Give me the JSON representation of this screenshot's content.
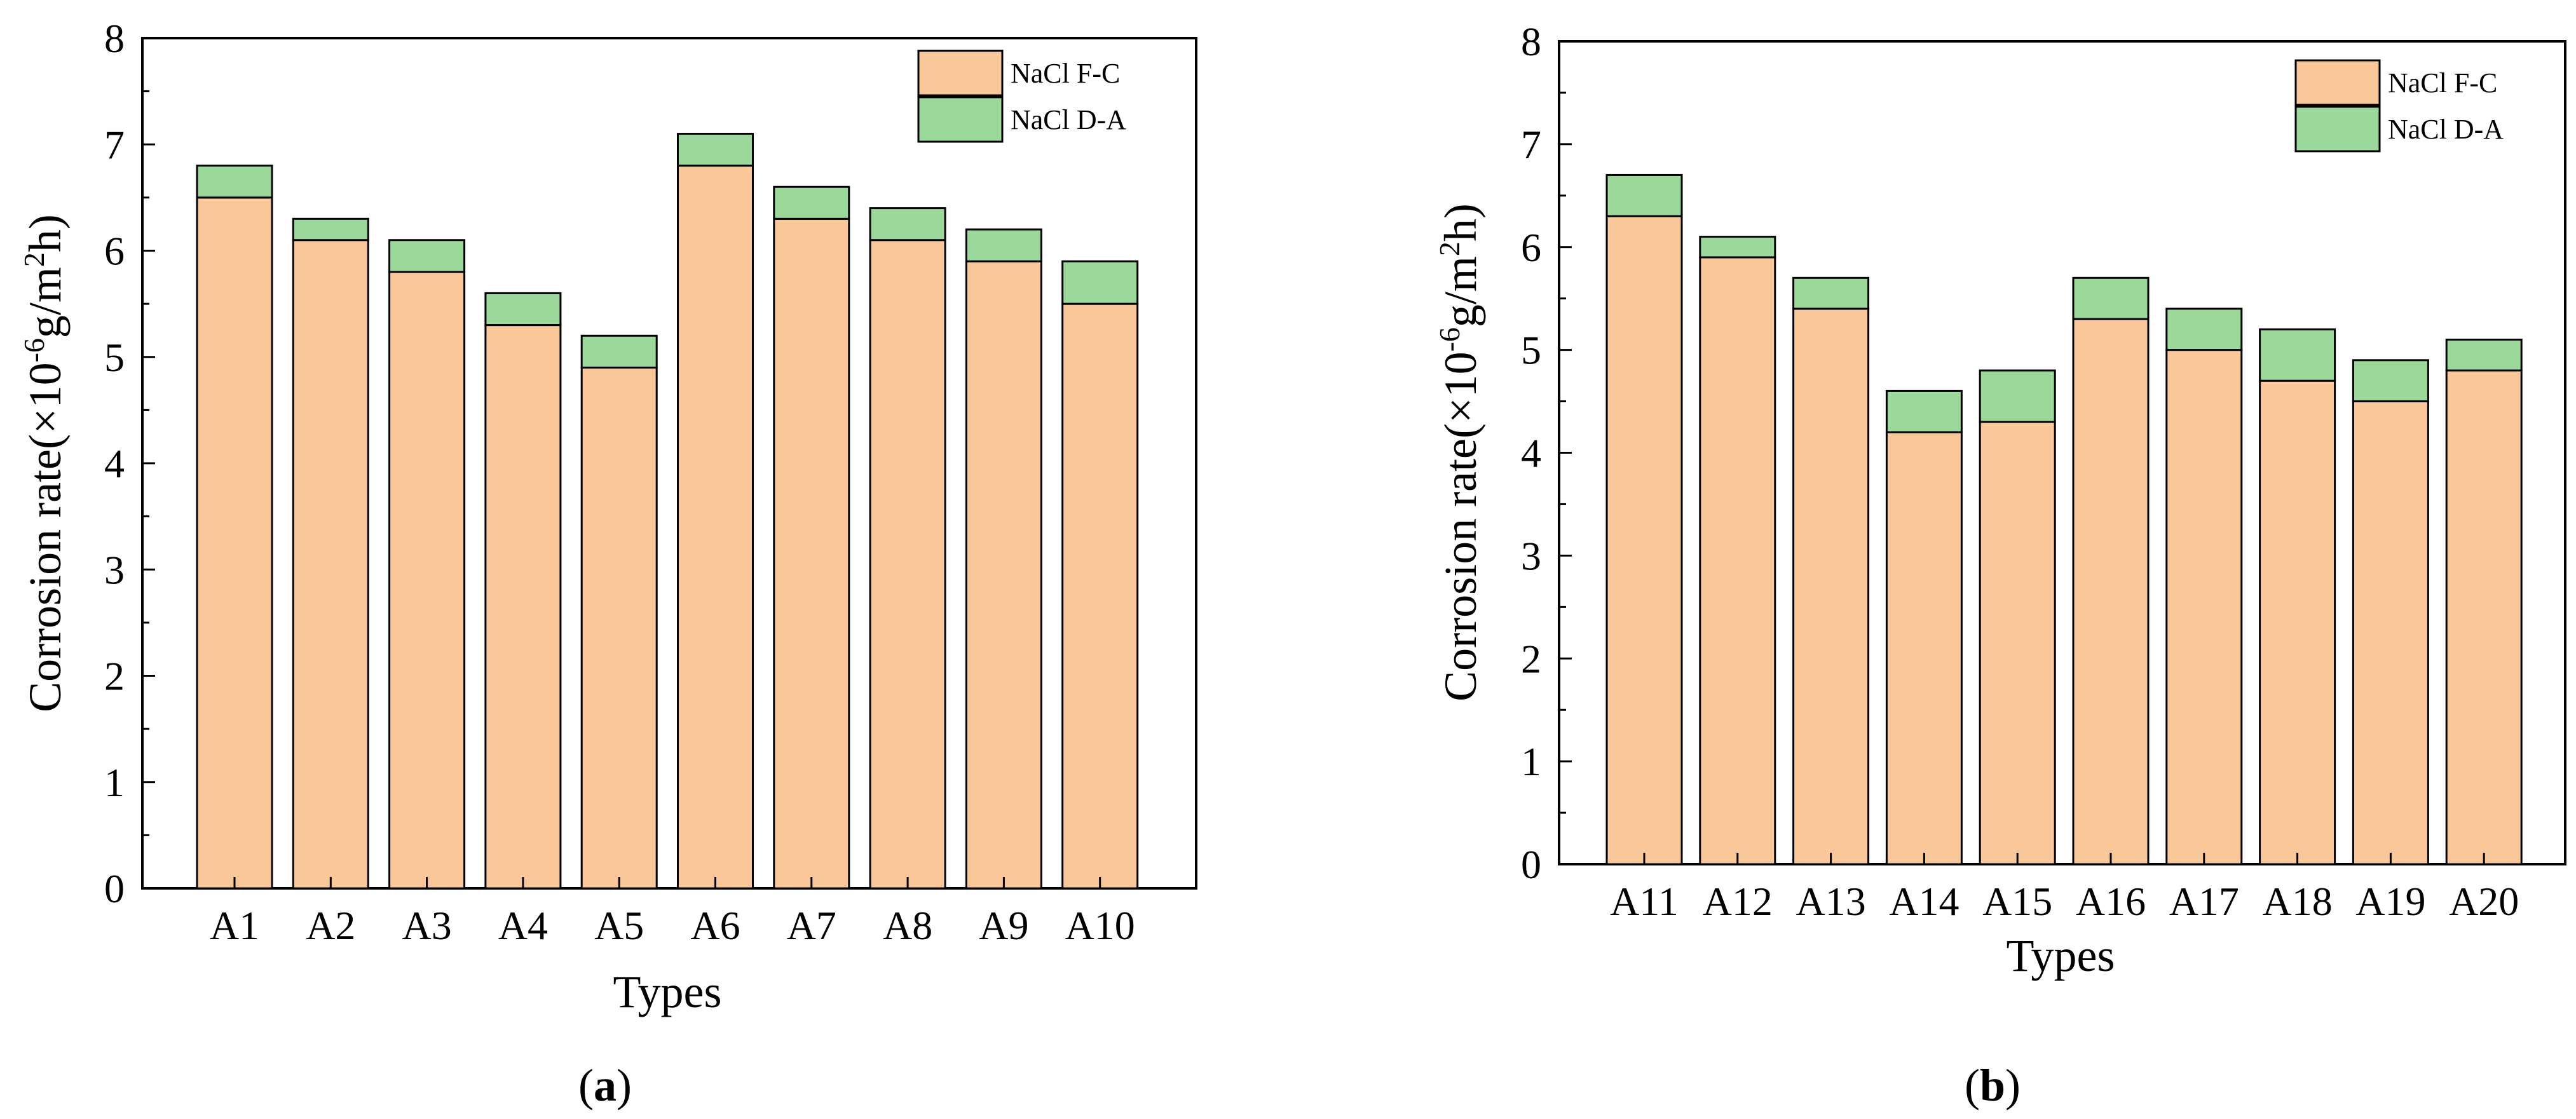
{
  "figure": {
    "panels": [
      {
        "id": "a",
        "caption_open": "(",
        "caption_letter": "a",
        "caption_close": ")"
      },
      {
        "id": "b",
        "caption_open": "(",
        "caption_letter": "b",
        "caption_close": ")"
      }
    ]
  },
  "chart_data": [
    {
      "type": "bar",
      "stacked": true,
      "categories": [
        "A1",
        "A2",
        "A3",
        "A4",
        "A5",
        "A6",
        "A7",
        "A8",
        "A9",
        "A10"
      ],
      "series": [
        {
          "name": "NaCl F-C",
          "values": [
            6.5,
            6.1,
            5.8,
            5.3,
            4.9,
            6.8,
            6.3,
            6.1,
            5.9,
            5.5
          ],
          "color": "#FAC898"
        },
        {
          "name": "NaCl D-A",
          "values": [
            0.3,
            0.2,
            0.3,
            0.3,
            0.3,
            0.3,
            0.3,
            0.3,
            0.3,
            0.4
          ],
          "color": "#9BD99B"
        }
      ],
      "xlabel": "Types",
      "ylabel_main": "Corrosion rate(×10",
      "ylabel_sup1": "-6",
      "ylabel_mid": "g/m",
      "ylabel_sup2": "2",
      "ylabel_end": "h)",
      "ylim": [
        0,
        8
      ],
      "yticks": [
        "0",
        "1",
        "2",
        "3",
        "4",
        "5",
        "6",
        "7",
        "8"
      ],
      "legend_position": "top-right"
    },
    {
      "type": "bar",
      "stacked": true,
      "categories": [
        "A11",
        "A12",
        "A13",
        "A14",
        "A15",
        "A16",
        "A17",
        "A18",
        "A19",
        "A20"
      ],
      "series": [
        {
          "name": "NaCl F-C",
          "values": [
            6.3,
            5.9,
            5.4,
            4.2,
            4.3,
            5.3,
            5.0,
            4.7,
            4.5,
            4.8
          ],
          "color": "#FAC898"
        },
        {
          "name": "NaCl D-A",
          "values": [
            0.4,
            0.2,
            0.3,
            0.4,
            0.5,
            0.4,
            0.4,
            0.5,
            0.4,
            0.3
          ],
          "color": "#9BD99B"
        }
      ],
      "xlabel": "Types",
      "ylabel_main": "Corrosion rate(×10",
      "ylabel_sup1": "-6",
      "ylabel_mid": "g/m",
      "ylabel_sup2": "2",
      "ylabel_end": "h)",
      "ylim": [
        0,
        8
      ],
      "yticks": [
        "0",
        "1",
        "2",
        "3",
        "4",
        "5",
        "6",
        "7",
        "8"
      ],
      "legend_position": "top-right"
    }
  ]
}
